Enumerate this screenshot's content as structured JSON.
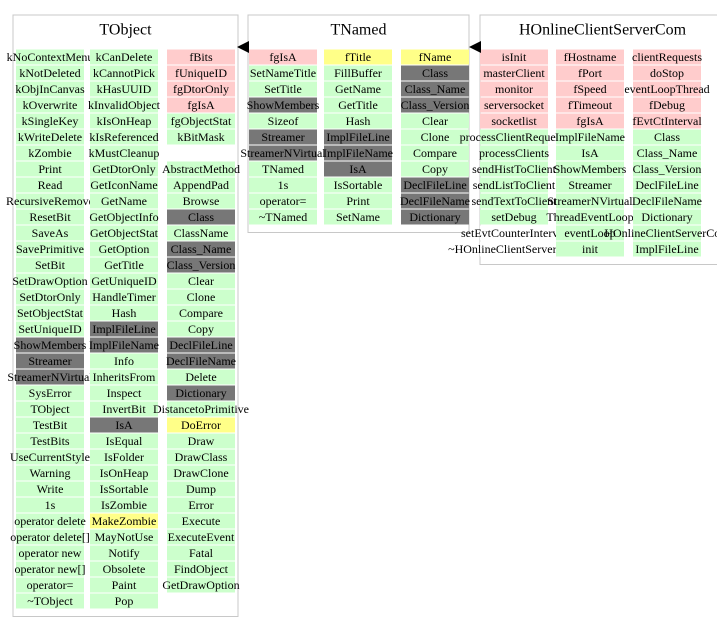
{
  "classes": [
    {
      "title": "TObject",
      "columns": [
        [
          {
            "text": "kNoContextMenu",
            "color": "#ccffcc"
          },
          {
            "text": "kNotDeleted",
            "color": "#ccffcc"
          },
          {
            "text": "kObjInCanvas",
            "color": "#ccffcc"
          },
          {
            "text": "kOverwrite",
            "color": "#ccffcc"
          },
          {
            "text": "kSingleKey",
            "color": "#ccffcc"
          },
          {
            "text": "kWriteDelete",
            "color": "#ccffcc"
          },
          {
            "text": "kZombie",
            "color": "#ccffcc"
          },
          {
            "text": "Print",
            "color": "#ccffcc"
          },
          {
            "text": "Read",
            "color": "#ccffcc"
          },
          {
            "text": "RecursiveRemove",
            "color": "#ccffcc"
          },
          {
            "text": "ResetBit",
            "color": "#ccffcc"
          },
          {
            "text": "SaveAs",
            "color": "#ccffcc"
          },
          {
            "text": "SavePrimitive",
            "color": "#ccffcc"
          },
          {
            "text": "SetBit",
            "color": "#ccffcc"
          },
          {
            "text": "SetDrawOption",
            "color": "#ccffcc"
          },
          {
            "text": "SetDtorOnly",
            "color": "#ccffcc"
          },
          {
            "text": "SetObjectStat",
            "color": "#ccffcc"
          },
          {
            "text": "SetUniqueID",
            "color": "#ccffcc"
          },
          {
            "text": "ShowMembers",
            "color": "#777777"
          },
          {
            "text": "Streamer",
            "color": "#777777"
          },
          {
            "text": "StreamerNVirtual",
            "color": "#777777"
          },
          {
            "text": "SysError",
            "color": "#ccffcc"
          },
          {
            "text": "TObject",
            "color": "#ccffcc"
          },
          {
            "text": "TestBit",
            "color": "#ccffcc"
          },
          {
            "text": "TestBits",
            "color": "#ccffcc"
          },
          {
            "text": "UseCurrentStyle",
            "color": "#ccffcc"
          },
          {
            "text": "Warning",
            "color": "#ccffcc"
          },
          {
            "text": "Write",
            "color": "#ccffcc"
          },
          {
            "text": "1s",
            "color": "#ccffcc"
          },
          {
            "text": "operator delete",
            "color": "#ccffcc"
          },
          {
            "text": "operator delete[]",
            "color": "#ccffcc"
          },
          {
            "text": "operator new",
            "color": "#ccffcc"
          },
          {
            "text": "operator new[]",
            "color": "#ccffcc"
          },
          {
            "text": "operator=",
            "color": "#ccffcc"
          },
          {
            "text": "~TObject",
            "color": "#ccffcc"
          }
        ],
        [
          {
            "text": "kCanDelete",
            "color": "#ccffcc"
          },
          {
            "text": "kCannotPick",
            "color": "#ccffcc"
          },
          {
            "text": "kHasUUID",
            "color": "#ccffcc"
          },
          {
            "text": "kInvalidObject",
            "color": "#ccffcc"
          },
          {
            "text": "kIsOnHeap",
            "color": "#ccffcc"
          },
          {
            "text": "kIsReferenced",
            "color": "#ccffcc"
          },
          {
            "text": "kMustCleanup",
            "color": "#ccffcc"
          },
          {
            "text": "GetDtorOnly",
            "color": "#ccffcc"
          },
          {
            "text": "GetIconName",
            "color": "#ccffcc"
          },
          {
            "text": "GetName",
            "color": "#ccffcc"
          },
          {
            "text": "GetObjectInfo",
            "color": "#ccffcc"
          },
          {
            "text": "GetObjectStat",
            "color": "#ccffcc"
          },
          {
            "text": "GetOption",
            "color": "#ccffcc"
          },
          {
            "text": "GetTitle",
            "color": "#ccffcc"
          },
          {
            "text": "GetUniqueID",
            "color": "#ccffcc"
          },
          {
            "text": "HandleTimer",
            "color": "#ccffcc"
          },
          {
            "text": "Hash",
            "color": "#ccffcc"
          },
          {
            "text": "ImplFileLine",
            "color": "#777777"
          },
          {
            "text": "ImplFileName",
            "color": "#777777"
          },
          {
            "text": "Info",
            "color": "#ccffcc"
          },
          {
            "text": "InheritsFrom",
            "color": "#ccffcc"
          },
          {
            "text": "Inspect",
            "color": "#ccffcc"
          },
          {
            "text": "InvertBit",
            "color": "#ccffcc"
          },
          {
            "text": "IsA",
            "color": "#777777"
          },
          {
            "text": "IsEqual",
            "color": "#ccffcc"
          },
          {
            "text": "IsFolder",
            "color": "#ccffcc"
          },
          {
            "text": "IsOnHeap",
            "color": "#ccffcc"
          },
          {
            "text": "IsSortable",
            "color": "#ccffcc"
          },
          {
            "text": "IsZombie",
            "color": "#ccffcc"
          },
          {
            "text": "MakeZombie",
            "color": "#ffff88"
          },
          {
            "text": "MayNotUse",
            "color": "#ccffcc"
          },
          {
            "text": "Notify",
            "color": "#ccffcc"
          },
          {
            "text": "Obsolete",
            "color": "#ccffcc"
          },
          {
            "text": "Paint",
            "color": "#ccffcc"
          },
          {
            "text": "Pop",
            "color": "#ccffcc"
          }
        ],
        [
          {
            "text": "fBits",
            "color": "#ffcccc"
          },
          {
            "text": "fUniqueID",
            "color": "#ffcccc"
          },
          {
            "text": "fgDtorOnly",
            "color": "#ffcccc"
          },
          {
            "text": "fgIsA",
            "color": "#ffcccc"
          },
          {
            "text": "fgObjectStat",
            "color": "#ccffcc"
          },
          {
            "text": "kBitMask",
            "color": "#ccffcc"
          },
          null,
          {
            "text": "AbstractMethod",
            "color": "#ccffcc"
          },
          {
            "text": "AppendPad",
            "color": "#ccffcc"
          },
          {
            "text": "Browse",
            "color": "#ccffcc"
          },
          {
            "text": "Class",
            "color": "#777777"
          },
          {
            "text": "ClassName",
            "color": "#ccffcc"
          },
          {
            "text": "Class_Name",
            "color": "#777777"
          },
          {
            "text": "Class_Version",
            "color": "#777777"
          },
          {
            "text": "Clear",
            "color": "#ccffcc"
          },
          {
            "text": "Clone",
            "color": "#ccffcc"
          },
          {
            "text": "Compare",
            "color": "#ccffcc"
          },
          {
            "text": "Copy",
            "color": "#ccffcc"
          },
          {
            "text": "DeclFileLine",
            "color": "#777777"
          },
          {
            "text": "DeclFileName",
            "color": "#777777"
          },
          {
            "text": "Delete",
            "color": "#ccffcc"
          },
          {
            "text": "Dictionary",
            "color": "#777777"
          },
          {
            "text": "DistancetoPrimitive",
            "color": "#ccffcc"
          },
          {
            "text": "DoError",
            "color": "#ffff88"
          },
          {
            "text": "Draw",
            "color": "#ccffcc"
          },
          {
            "text": "DrawClass",
            "color": "#ccffcc"
          },
          {
            "text": "DrawClone",
            "color": "#ccffcc"
          },
          {
            "text": "Dump",
            "color": "#ccffcc"
          },
          {
            "text": "Error",
            "color": "#ccffcc"
          },
          {
            "text": "Execute",
            "color": "#ccffcc"
          },
          {
            "text": "ExecuteEvent",
            "color": "#ccffcc"
          },
          {
            "text": "Fatal",
            "color": "#ccffcc"
          },
          {
            "text": "FindObject",
            "color": "#ccffcc"
          },
          {
            "text": "GetDrawOption",
            "color": "#ccffcc"
          }
        ]
      ]
    },
    {
      "title": "TNamed",
      "columns": [
        [
          {
            "text": "fgIsA",
            "color": "#ffcccc"
          },
          {
            "text": "SetNameTitle",
            "color": "#ccffcc"
          },
          {
            "text": "SetTitle",
            "color": "#ccffcc"
          },
          {
            "text": "ShowMembers",
            "color": "#777777"
          },
          {
            "text": "Sizeof",
            "color": "#ccffcc"
          },
          {
            "text": "Streamer",
            "color": "#777777"
          },
          {
            "text": "StreamerNVirtual",
            "color": "#777777"
          },
          {
            "text": "TNamed",
            "color": "#ccffcc"
          },
          {
            "text": "1s",
            "color": "#ccffcc"
          },
          {
            "text": "operator=",
            "color": "#ccffcc"
          },
          {
            "text": "~TNamed",
            "color": "#ccffcc"
          }
        ],
        [
          {
            "text": "fTitle",
            "color": "#ffff88"
          },
          {
            "text": "FillBuffer",
            "color": "#ccffcc"
          },
          {
            "text": "GetName",
            "color": "#ccffcc"
          },
          {
            "text": "GetTitle",
            "color": "#ccffcc"
          },
          {
            "text": "Hash",
            "color": "#ccffcc"
          },
          {
            "text": "ImplFileLine",
            "color": "#777777"
          },
          {
            "text": "ImplFileName",
            "color": "#777777"
          },
          {
            "text": "IsA",
            "color": "#777777"
          },
          {
            "text": "IsSortable",
            "color": "#ccffcc"
          },
          {
            "text": "Print",
            "color": "#ccffcc"
          },
          {
            "text": "SetName",
            "color": "#ccffcc"
          }
        ],
        [
          {
            "text": "fName",
            "color": "#ffff88"
          },
          {
            "text": "Class",
            "color": "#777777"
          },
          {
            "text": "Class_Name",
            "color": "#777777"
          },
          {
            "text": "Class_Version",
            "color": "#777777"
          },
          {
            "text": "Clear",
            "color": "#ccffcc"
          },
          {
            "text": "Clone",
            "color": "#ccffcc"
          },
          {
            "text": "Compare",
            "color": "#ccffcc"
          },
          {
            "text": "Copy",
            "color": "#ccffcc"
          },
          {
            "text": "DeclFileLine",
            "color": "#777777"
          },
          {
            "text": "DeclFileName",
            "color": "#777777"
          },
          {
            "text": "Dictionary",
            "color": "#777777"
          }
        ]
      ]
    },
    {
      "title": "HOnlineClientServerCom",
      "columns": [
        [
          {
            "text": "isInit",
            "color": "#ffcccc"
          },
          {
            "text": "masterClient",
            "color": "#ffcccc"
          },
          {
            "text": "monitor",
            "color": "#ffcccc"
          },
          {
            "text": "serversocket",
            "color": "#ffcccc"
          },
          {
            "text": "socketlist",
            "color": "#ffcccc"
          },
          {
            "text": "processClientRequests",
            "color": "#ccffcc"
          },
          {
            "text": "processClients",
            "color": "#ccffcc"
          },
          {
            "text": "sendHistToClient",
            "color": "#ccffcc"
          },
          {
            "text": "sendListToClient",
            "color": "#ccffcc"
          },
          {
            "text": "sendTextToClient",
            "color": "#ccffcc"
          },
          {
            "text": "setDebug",
            "color": "#ccffcc"
          },
          {
            "text": "setEvtCounterInterval",
            "color": "#ffffff"
          },
          {
            "text": "~HOnlineClientServerCom",
            "color": "#ffffff"
          }
        ],
        [
          {
            "text": "fHostname",
            "color": "#ffcccc"
          },
          {
            "text": "fPort",
            "color": "#ffcccc"
          },
          {
            "text": "fSpeed",
            "color": "#ffcccc"
          },
          {
            "text": "fTimeout",
            "color": "#ffcccc"
          },
          {
            "text": "fgIsA",
            "color": "#ffcccc"
          },
          {
            "text": "ImplFileName",
            "color": "#ccffcc"
          },
          {
            "text": "IsA",
            "color": "#ccffcc"
          },
          {
            "text": "ShowMembers",
            "color": "#ccffcc"
          },
          {
            "text": "Streamer",
            "color": "#ccffcc"
          },
          {
            "text": "StreamerNVirtual",
            "color": "#ccffcc"
          },
          {
            "text": "ThreadEventLoop",
            "color": "#ccffcc"
          },
          {
            "text": "eventLoop",
            "color": "#ccffcc"
          },
          {
            "text": "init",
            "color": "#ccffcc"
          }
        ],
        [
          {
            "text": "clientRequests",
            "color": "#ffcccc"
          },
          {
            "text": "doStop",
            "color": "#ffcccc"
          },
          {
            "text": "eventLoopThread",
            "color": "#ffcccc"
          },
          {
            "text": "fDebug",
            "color": "#ffcccc"
          },
          {
            "text": "fEvtCtInterval",
            "color": "#ffcccc"
          },
          {
            "text": "Class",
            "color": "#ccffcc"
          },
          {
            "text": "Class_Name",
            "color": "#ccffcc"
          },
          {
            "text": "Class_Version",
            "color": "#ccffcc"
          },
          {
            "text": "DeclFileLine",
            "color": "#ccffcc"
          },
          {
            "text": "DeclFileName",
            "color": "#ccffcc"
          },
          {
            "text": "Dictionary",
            "color": "#ccffcc"
          },
          {
            "text": "HOnlineClientServerCom",
            "color": "#ccffcc"
          },
          {
            "text": "ImplFileLine",
            "color": "#ccffcc"
          }
        ]
      ]
    }
  ]
}
